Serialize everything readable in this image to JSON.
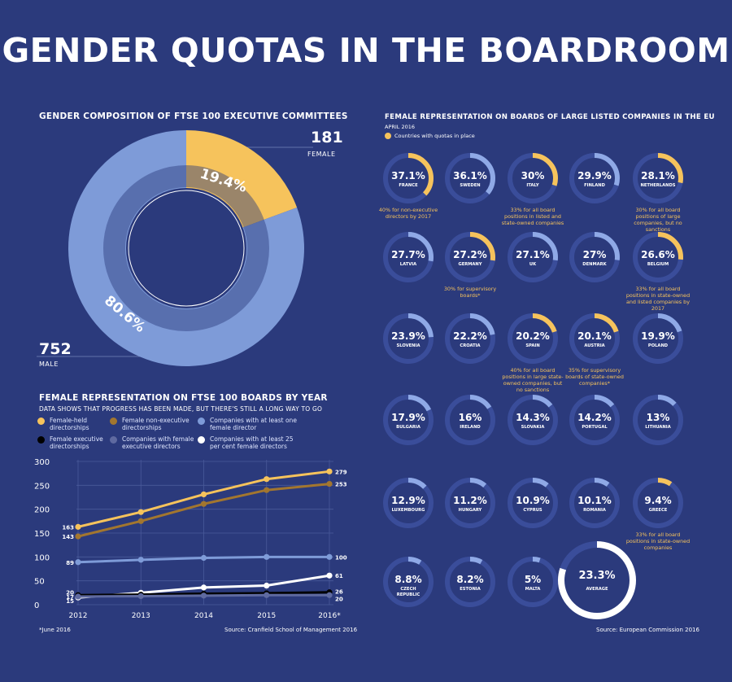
{
  "title": "GENDER QUOTAS IN THE BOARDROOM",
  "donut": {
    "title": "GENDER COMPOSITION OF FTSE 100 EXECUTIVE COMMITTEES",
    "female_count": "181",
    "female_label": "FEMALE",
    "male_count": "752",
    "male_label": "MALE",
    "female_pct": "19.4%",
    "male_pct": "80.6%"
  },
  "boards_chart": {
    "title": "FEMALE REPRESENTATION ON FTSE 100 BOARDS BY YEAR",
    "subtitle": "DATA SHOWS THAT PROGRESS HAS BEEN MADE, BUT THERE'S STILL A LONG WAY TO GO",
    "legend": [
      "Female-held directorships",
      "Female non-executive directorships",
      "Companies with at least one female director",
      "Female executive directorships",
      "Companies with female executive directors",
      "Companies with at least 25 per cent female directors"
    ],
    "footnote": "*June 2016",
    "source": "Source: Cranfield School of Management 2016"
  },
  "eu": {
    "title": "FEMALE REPRESENTATION ON BOARDS OF LARGE LISTED COMPANIES IN THE EU",
    "date": "APRIL 2016",
    "legend": "Countries with quotas in place",
    "source": "Source: European Commission 2016"
  },
  "colors": {
    "background": "#2b3a7c",
    "yellow": "#f6c35c",
    "brown": "#a2762f",
    "blue": "#7e9bd8",
    "gray": "#5f6aa0",
    "ring_track": "#3a4d9a",
    "ring_fill": "#8fa9e6"
  },
  "chart_data": [
    {
      "type": "pie",
      "title": "GENDER COMPOSITION OF FTSE 100 EXECUTIVE COMMITTEES",
      "categories": [
        "FEMALE",
        "MALE"
      ],
      "values": [
        181,
        752
      ],
      "labels": [
        "19.4%",
        "80.6%"
      ]
    },
    {
      "type": "line",
      "title": "FEMALE REPRESENTATION ON FTSE 100 BOARDS BY YEAR",
      "x": [
        "2012",
        "2013",
        "2014",
        "2015",
        "2016*"
      ],
      "ylim": [
        0,
        300
      ],
      "yticks": [
        "300",
        "250",
        "200",
        "150",
        "100",
        "50",
        "0"
      ],
      "series": [
        {
          "name": "Female-held directorships",
          "color": "#f6c35c",
          "values": [
            163,
            194,
            231,
            263,
            279
          ]
        },
        {
          "name": "Female non-executive directorships",
          "color": "#a2762f",
          "values": [
            143,
            175,
            211,
            240,
            253
          ]
        },
        {
          "name": "Companies with at least one female director",
          "color": "#7e9bd8",
          "values": [
            89,
            94,
            98,
            100,
            100
          ]
        },
        {
          "name": "Companies with at least 25 per cent female directors",
          "color": "#ffffff",
          "values": [
            15,
            25,
            36,
            40,
            61
          ]
        },
        {
          "name": "Female executive directorships",
          "color": "#000000",
          "values": [
            20,
            21,
            23,
            24,
            26
          ]
        },
        {
          "name": "Companies with female executive directors",
          "color": "#5f6aa0",
          "values": [
            17,
            18,
            19,
            20,
            20
          ]
        }
      ],
      "start_labels": [
        "163",
        "143",
        "89",
        "20",
        "17",
        "15"
      ],
      "end_labels": [
        "279",
        "253",
        "100",
        "61",
        "26",
        "20"
      ]
    },
    {
      "type": "bar",
      "title": "FEMALE REPRESENTATION ON BOARDS OF LARGE LISTED COMPANIES IN THE EU",
      "unit": "%",
      "countries": [
        {
          "name": "FRANCE",
          "value": 37.1,
          "quota": true,
          "note": "40% for non-executive directors by 2017"
        },
        {
          "name": "SWEDEN",
          "value": 36.1,
          "quota": false
        },
        {
          "name": "ITALY",
          "value": 30,
          "quota": true,
          "note": "33% for all board positions in listed and state-owned companies"
        },
        {
          "name": "FINLAND",
          "value": 29.9,
          "quota": false
        },
        {
          "name": "NETHERLANDS",
          "value": 28.1,
          "quota": true,
          "note": "30% for all board positions of large companies, but no sanctions"
        },
        {
          "name": "LATVIA",
          "value": 27.7,
          "quota": false
        },
        {
          "name": "GERMANY",
          "value": 27.2,
          "quota": true,
          "note": "30% for supervisory boards*"
        },
        {
          "name": "UK",
          "value": 27.1,
          "quota": false
        },
        {
          "name": "DENMARK",
          "value": 27,
          "quota": false
        },
        {
          "name": "BELGIUM",
          "value": 26.6,
          "quota": true,
          "note": "33% for all board positions in state-owned and listed companies by 2017"
        },
        {
          "name": "SLOVENIA",
          "value": 23.9,
          "quota": false
        },
        {
          "name": "CROATIA",
          "value": 22.2,
          "quota": false
        },
        {
          "name": "SPAIN",
          "value": 20.2,
          "quota": true,
          "note": "40% for all board positions in large state-owned companies, but no sanctions"
        },
        {
          "name": "AUSTRIA",
          "value": 20.1,
          "quota": true,
          "note": "35% for supervisory boards of state-owned companies*"
        },
        {
          "name": "POLAND",
          "value": 19.9,
          "quota": false
        },
        {
          "name": "BULGARIA",
          "value": 17.9,
          "quota": false
        },
        {
          "name": "IRELAND",
          "value": 16,
          "quota": false
        },
        {
          "name": "SLOVAKIA",
          "value": 14.3,
          "quota": false
        },
        {
          "name": "PORTUGAL",
          "value": 14.2,
          "quota": false
        },
        {
          "name": "LITHUANIA",
          "value": 13,
          "quota": false
        },
        {
          "name": "LUXEMBOURG",
          "value": 12.9,
          "quota": false
        },
        {
          "name": "HUNGARY",
          "value": 11.2,
          "quota": false
        },
        {
          "name": "CYPRUS",
          "value": 10.9,
          "quota": false
        },
        {
          "name": "ROMANIA",
          "value": 10.1,
          "quota": false
        },
        {
          "name": "GREECE",
          "value": 9.4,
          "quota": true,
          "note": "33% for all board positions in state-owned companies"
        },
        {
          "name": "CZECH REPUBLIC",
          "value": 8.8,
          "quota": false
        },
        {
          "name": "ESTONIA",
          "value": 8.2,
          "quota": false
        },
        {
          "name": "MALTA",
          "value": 5,
          "quota": false
        },
        {
          "name": "AVERAGE",
          "value": 23.3,
          "quota": false,
          "average": true
        }
      ]
    }
  ]
}
